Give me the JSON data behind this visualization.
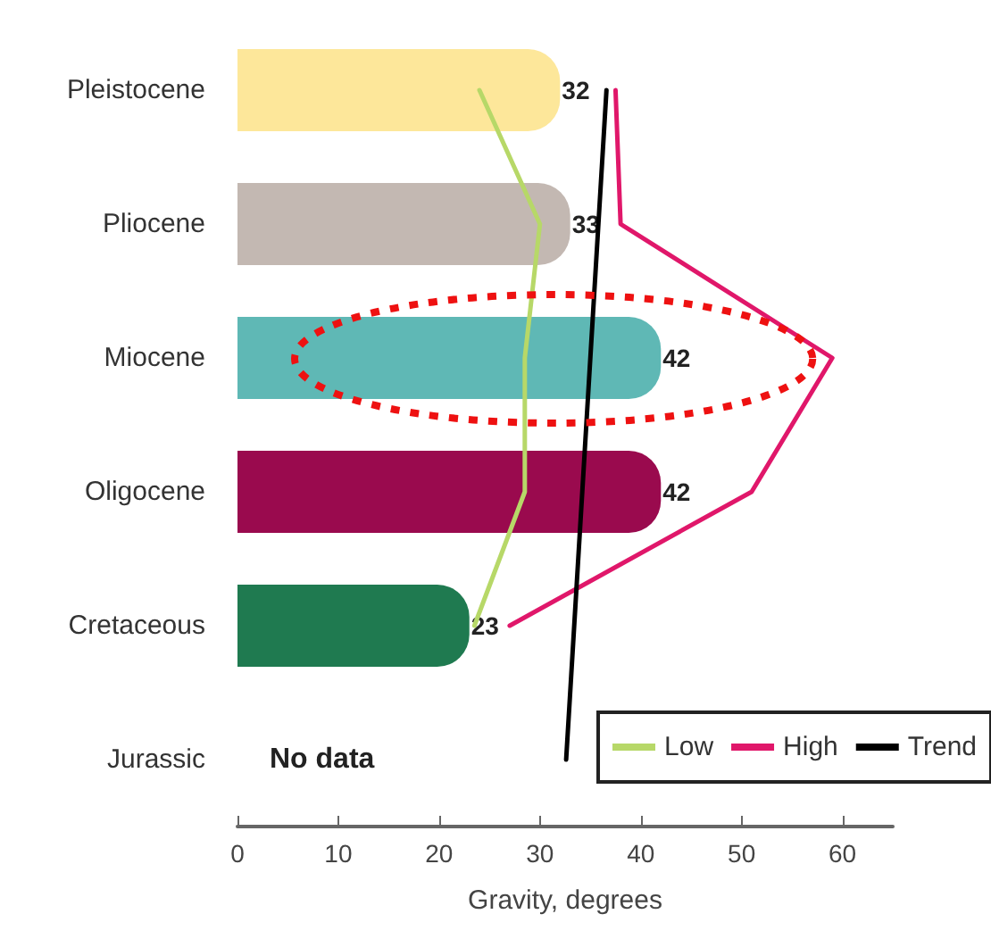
{
  "chart_data": {
    "type": "bar",
    "orientation": "horizontal",
    "xlabel": "Gravity, degrees",
    "xlim": [
      0,
      65
    ],
    "xticks": [
      0,
      10,
      20,
      30,
      40,
      50,
      60
    ],
    "grid": false,
    "legend": "bottom right",
    "marker": "none",
    "categories": [
      "Pleistocene",
      "Pliocene",
      "Miocene",
      "Oligocene",
      "Cretaceous",
      "Jurassic"
    ],
    "series": [
      {
        "colors": [
          "#fde79a",
          "#c3b8b2",
          "#5fb8b5",
          "#9a0a4e",
          "#1f7a50",
          "#999999"
        ],
        "values": [
          32,
          33,
          42,
          42,
          23,
          null
        ],
        "value_labels": [
          "32",
          "33",
          "42",
          "42",
          "23",
          "No data"
        ]
      },
      {
        "type": "line",
        "name": "Low",
        "color": "#b7d868",
        "values": [
          24,
          30,
          28.5,
          28.5,
          23.5,
          null
        ]
      },
      {
        "type": "line",
        "name": "High",
        "color": "#e0176a",
        "values": [
          37.5,
          38,
          59,
          51,
          27,
          null
        ]
      },
      {
        "type": "line",
        "name": "Trend",
        "color": "#000000",
        "values": [
          36.6,
          null,
          null,
          null,
          null,
          32.6
        ]
      }
    ]
  }
}
